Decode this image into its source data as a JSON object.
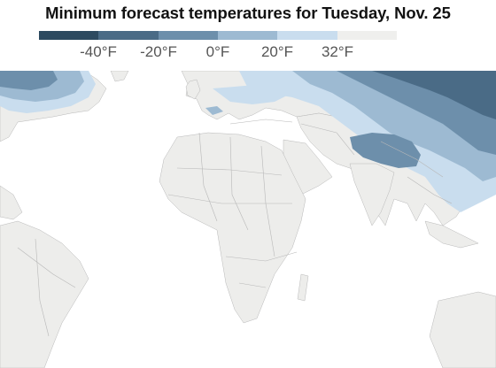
{
  "title": "Minimum forecast temperatures for Tuesday, Nov. 25",
  "legend": {
    "colors": [
      "#2d4a60",
      "#4a6b86",
      "#6d8fab",
      "#9dbad2",
      "#c9ddee",
      "#efefed"
    ],
    "labels": [
      "-40°F",
      "-20°F",
      "0°F",
      "20°F",
      "32°F"
    ]
  },
  "map": {
    "land_color": "#ededeb",
    "border_color": "#b8b8b8",
    "ocean_color": "#ffffff"
  }
}
